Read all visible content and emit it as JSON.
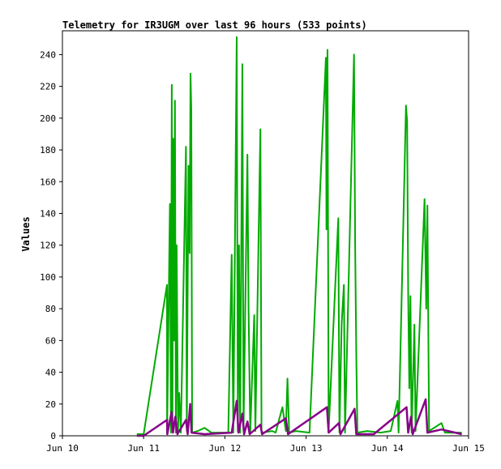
{
  "chart_data": {
    "type": "line",
    "title": "Telemetry for IR3UGM over last 96 hours (533 points)",
    "xlabel": "",
    "ylabel": "Values",
    "xlim": [
      "2024-06-10",
      "2024-06-15"
    ],
    "ylim": [
      0,
      255
    ],
    "x_ticks": [
      "Jun 10",
      "Jun 11",
      "Jun 12",
      "Jun 13",
      "Jun 14",
      "Jun 15"
    ],
    "y_ticks": [
      0,
      20,
      40,
      60,
      80,
      100,
      120,
      140,
      160,
      180,
      200,
      220,
      240
    ],
    "grid": false,
    "legend": "none",
    "series": [
      {
        "color": "#00aa00",
        "points": [
          [
            "2024-06-10 22:00",
            1
          ],
          [
            "2024-06-11 00:00",
            1
          ],
          [
            "2024-06-11 06:54",
            95
          ],
          [
            "2024-06-11 06:56",
            1
          ],
          [
            "2024-06-11 07:45",
            146
          ],
          [
            "2024-06-11 08:05",
            2
          ],
          [
            "2024-06-11 08:18",
            221
          ],
          [
            "2024-06-11 08:30",
            3
          ],
          [
            "2024-06-11 08:45",
            187
          ],
          [
            "2024-06-11 09:00",
            60
          ],
          [
            "2024-06-11 09:15",
            211
          ],
          [
            "2024-06-11 09:30",
            2
          ],
          [
            "2024-06-11 09:45",
            120
          ],
          [
            "2024-06-11 10:10",
            3
          ],
          [
            "2024-06-11 10:30",
            27
          ],
          [
            "2024-06-11 11:00",
            2
          ],
          [
            "2024-06-11 12:30",
            182
          ],
          [
            "2024-06-11 12:45",
            3
          ],
          [
            "2024-06-11 13:15",
            170
          ],
          [
            "2024-06-11 13:35",
            115
          ],
          [
            "2024-06-11 13:50",
            228
          ],
          [
            "2024-06-11 14:05",
            205
          ],
          [
            "2024-06-11 14:20",
            2
          ],
          [
            "2024-06-11 16:00",
            3
          ],
          [
            "2024-06-11 18:00",
            5
          ],
          [
            "2024-06-11 20:00",
            2
          ],
          [
            "2024-06-12 01:00",
            2
          ],
          [
            "2024-06-12 02:00",
            114
          ],
          [
            "2024-06-12 02:30",
            2
          ],
          [
            "2024-06-12 03:30",
            251
          ],
          [
            "2024-06-12 03:50",
            3
          ],
          [
            "2024-06-12 04:10",
            120
          ],
          [
            "2024-06-12 04:30",
            2
          ],
          [
            "2024-06-12 05:10",
            234
          ],
          [
            "2024-06-12 05:30",
            3
          ],
          [
            "2024-06-12 06:40",
            177
          ],
          [
            "2024-06-12 07:00",
            80
          ],
          [
            "2024-06-12 07:30",
            2
          ],
          [
            "2024-06-12 08:40",
            76
          ],
          [
            "2024-06-12 09:00",
            3
          ],
          [
            "2024-06-12 10:30",
            193
          ],
          [
            "2024-06-12 10:50",
            2
          ],
          [
            "2024-06-12 14:00",
            3
          ],
          [
            "2024-06-12 15:00",
            2
          ],
          [
            "2024-06-12 17:00",
            18
          ],
          [
            "2024-06-12 18:00",
            3
          ],
          [
            "2024-06-12 18:30",
            36
          ],
          [
            "2024-06-12 19:00",
            2
          ],
          [
            "2024-06-12 21:00",
            3
          ],
          [
            "2024-06-13 01:00",
            2
          ],
          [
            "2024-06-13 05:50",
            238
          ],
          [
            "2024-06-13 06:00",
            130
          ],
          [
            "2024-06-13 06:20",
            243
          ],
          [
            "2024-06-13 06:40",
            3
          ],
          [
            "2024-06-13 09:30",
            137
          ],
          [
            "2024-06-13 09:50",
            2
          ],
          [
            "2024-06-13 10:30",
            70
          ],
          [
            "2024-06-13 11:10",
            95
          ],
          [
            "2024-06-13 11:30",
            2
          ],
          [
            "2024-06-13 14:10",
            240
          ],
          [
            "2024-06-13 14:30",
            120
          ],
          [
            "2024-06-13 14:50",
            50
          ],
          [
            "2024-06-13 15:10",
            2
          ],
          [
            "2024-06-13 18:00",
            3
          ],
          [
            "2024-06-13 22:00",
            2
          ],
          [
            "2024-06-14 01:00",
            3
          ],
          [
            "2024-06-14 03:00",
            22
          ],
          [
            "2024-06-14 03:20",
            2
          ],
          [
            "2024-06-14 05:30",
            208
          ],
          [
            "2024-06-14 05:50",
            198
          ],
          [
            "2024-06-14 06:10",
            90
          ],
          [
            "2024-06-14 06:30",
            30
          ],
          [
            "2024-06-14 06:50",
            88
          ],
          [
            "2024-06-14 07:10",
            2
          ],
          [
            "2024-06-14 08:00",
            70
          ],
          [
            "2024-06-14 08:20",
            3
          ],
          [
            "2024-06-14 11:00",
            149
          ],
          [
            "2024-06-14 11:30",
            80
          ],
          [
            "2024-06-14 11:50",
            145
          ],
          [
            "2024-06-14 12:20",
            3
          ],
          [
            "2024-06-14 16:00",
            8
          ],
          [
            "2024-06-14 17:00",
            2
          ],
          [
            "2024-06-14 20:00",
            2
          ],
          [
            "2024-06-14 22:00",
            2
          ]
        ]
      },
      {
        "color": "#880088",
        "points": [
          [
            "2024-06-10 22:00",
            0
          ],
          [
            "2024-06-11 00:00",
            0
          ],
          [
            "2024-06-11 06:54",
            10
          ],
          [
            "2024-06-11 07:00",
            1
          ],
          [
            "2024-06-11 08:15",
            15
          ],
          [
            "2024-06-11 08:40",
            2
          ],
          [
            "2024-06-11 09:20",
            12
          ],
          [
            "2024-06-11 10:00",
            1
          ],
          [
            "2024-06-11 12:30",
            10
          ],
          [
            "2024-06-11 13:00",
            1
          ],
          [
            "2024-06-11 13:45",
            20
          ],
          [
            "2024-06-11 14:10",
            2
          ],
          [
            "2024-06-11 18:00",
            1
          ],
          [
            "2024-06-12 02:00",
            2
          ],
          [
            "2024-06-12 03:30",
            22
          ],
          [
            "2024-06-12 04:00",
            2
          ],
          [
            "2024-06-12 05:10",
            14
          ],
          [
            "2024-06-12 05:40",
            1
          ],
          [
            "2024-06-12 06:40",
            9
          ],
          [
            "2024-06-12 07:20",
            1
          ],
          [
            "2024-06-12 10:30",
            7
          ],
          [
            "2024-06-12 11:00",
            1
          ],
          [
            "2024-06-12 18:00",
            11
          ],
          [
            "2024-06-12 18:40",
            1
          ],
          [
            "2024-06-13 06:10",
            18
          ],
          [
            "2024-06-13 06:40",
            2
          ],
          [
            "2024-06-13 09:40",
            8
          ],
          [
            "2024-06-13 10:10",
            1
          ],
          [
            "2024-06-13 14:20",
            17
          ],
          [
            "2024-06-13 14:50",
            1
          ],
          [
            "2024-06-13 20:00",
            1
          ],
          [
            "2024-06-14 05:40",
            18
          ],
          [
            "2024-06-14 06:10",
            2
          ],
          [
            "2024-06-14 07:00",
            12
          ],
          [
            "2024-06-14 07:30",
            1
          ],
          [
            "2024-06-14 11:20",
            23
          ],
          [
            "2024-06-14 11:50",
            2
          ],
          [
            "2024-06-14 16:00",
            4
          ],
          [
            "2024-06-14 22:00",
            1
          ]
        ]
      }
    ]
  }
}
